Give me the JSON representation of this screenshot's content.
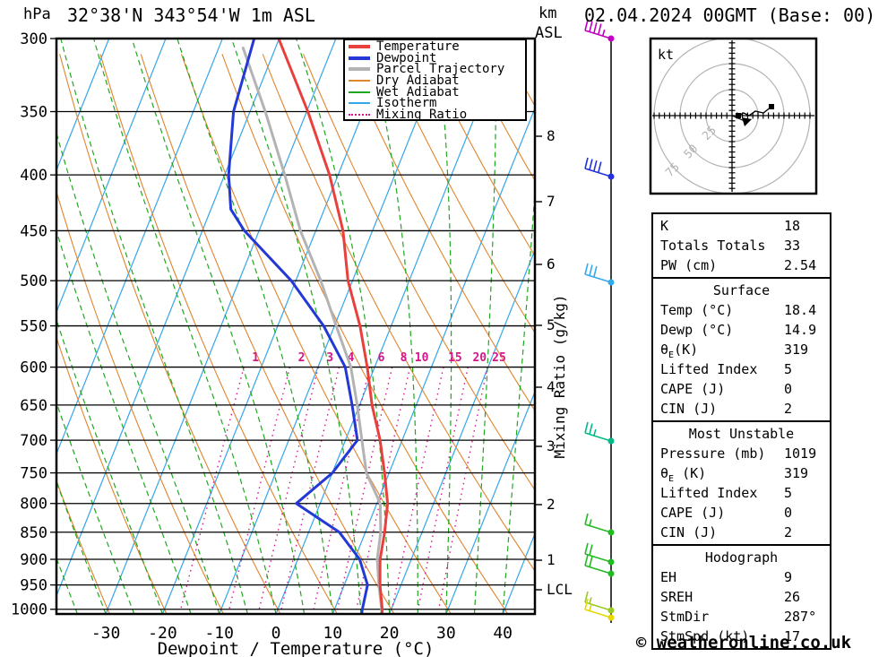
{
  "header": {
    "pressure_unit": "hPa",
    "title": "32°38'N 343°54'W 1m ASL",
    "date": "02.04.2024 00GMT (Base: 00)",
    "altitude_unit_km": "km",
    "altitude_unit_asl": "ASL"
  },
  "footer": {
    "xaxis_label": "Dewpoint / Temperature (°C)",
    "copyright": "© weatheronline.co.uk"
  },
  "legend": {
    "items": [
      {
        "label": "Temperature",
        "color": "#e8403c",
        "thick": true,
        "dotted": false
      },
      {
        "label": "Dewpoint",
        "color": "#2438d6",
        "thick": true,
        "dotted": false
      },
      {
        "label": "Parcel Trajectory",
        "color": "#b3b3b3",
        "thick": true,
        "dotted": false
      },
      {
        "label": "Dry Adiabat",
        "color": "#e0852e",
        "thick": false,
        "dotted": false
      },
      {
        "label": "Wet Adiabat",
        "color": "#1fa81f",
        "thick": false,
        "dotted": false
      },
      {
        "label": "Isotherm",
        "color": "#35a6ea",
        "thick": false,
        "dotted": false
      },
      {
        "label": "Mixing Ratio",
        "color": "#d6158c",
        "thick": false,
        "dotted": true
      }
    ]
  },
  "axes": {
    "pressure_ticks": [
      300,
      350,
      400,
      450,
      500,
      550,
      600,
      650,
      700,
      750,
      800,
      850,
      900,
      950,
      1000
    ],
    "temp_ticks": [
      -30,
      -20,
      -10,
      0,
      10,
      20,
      30,
      40
    ],
    "right_axis_label": "Mixing Ratio (g/kg)",
    "km_ticks": [
      {
        "label": "8",
        "y": 152
      },
      {
        "label": "7",
        "y": 225
      },
      {
        "label": "6",
        "y": 295
      },
      {
        "label": "5",
        "y": 363
      },
      {
        "label": "4",
        "y": 432
      },
      {
        "label": "3",
        "y": 498
      },
      {
        "label": "2",
        "y": 563
      },
      {
        "label": "1",
        "y": 625
      },
      {
        "label": "LCL",
        "y": 658
      }
    ]
  },
  "chart_data": {
    "type": "line",
    "subtype": "skewt-log-p",
    "title": "32°38'N 343°54'W 1m ASL",
    "xlabel": "Dewpoint / Temperature (°C)",
    "ylabel": "hPa",
    "xlim": [
      -40,
      45
    ],
    "pressure_range": [
      300,
      1010
    ],
    "grid": {
      "isotherm_temps": [
        -80,
        -70,
        -60,
        -50,
        -40,
        -30,
        -20,
        -10,
        0,
        10,
        20,
        30,
        40
      ],
      "dry_adiabat_thetas": [
        -40,
        -30,
        -20,
        -10,
        0,
        10,
        20,
        30,
        40,
        50,
        60,
        70,
        80,
        90,
        100,
        110,
        120
      ],
      "wet_adiabat_thetaws": [
        -40,
        -35,
        -30,
        -25,
        -20,
        -15,
        -10,
        -5,
        0,
        5,
        10,
        15,
        20,
        25,
        30,
        35,
        40
      ],
      "mixing_ratios": [
        1,
        2,
        3,
        4,
        6,
        8,
        10,
        15,
        20,
        25
      ]
    },
    "series": [
      {
        "name": "Temperature",
        "color": "#e8403c",
        "points_p_T": [
          [
            300,
            -40.1
          ],
          [
            350,
            -29.8
          ],
          [
            400,
            -21.5
          ],
          [
            450,
            -15.2
          ],
          [
            500,
            -10.8
          ],
          [
            550,
            -5.5
          ],
          [
            600,
            -1.3
          ],
          [
            650,
            2.2
          ],
          [
            700,
            6.1
          ],
          [
            750,
            9.2
          ],
          [
            800,
            11.9
          ],
          [
            850,
            13.4
          ],
          [
            900,
            14.5
          ],
          [
            950,
            16.3
          ],
          [
            1000,
            18.4
          ],
          [
            1010,
            18.7
          ]
        ]
      },
      {
        "name": "Dewpoint",
        "color": "#2438d6",
        "points_p_T": [
          [
            300,
            -44.4
          ],
          [
            350,
            -42.9
          ],
          [
            400,
            -39.3
          ],
          [
            430,
            -36.5
          ],
          [
            450,
            -32.6
          ],
          [
            500,
            -20.8
          ],
          [
            550,
            -11.9
          ],
          [
            600,
            -5.2
          ],
          [
            650,
            -1.3
          ],
          [
            700,
            2.1
          ],
          [
            750,
            0.0
          ],
          [
            800,
            -4.2
          ],
          [
            850,
            5.4
          ],
          [
            900,
            10.9
          ],
          [
            950,
            14.1
          ],
          [
            1000,
            14.9
          ],
          [
            1010,
            15.1
          ]
        ]
      },
      {
        "name": "Parcel Trajectory",
        "color": "#b3b3b3",
        "points_p_T": [
          [
            306,
            -45.7
          ],
          [
            350,
            -37.3
          ],
          [
            400,
            -29.4
          ],
          [
            450,
            -22.7
          ],
          [
            500,
            -15.6
          ],
          [
            550,
            -9.7
          ],
          [
            600,
            -4.2
          ],
          [
            650,
            -0.4
          ],
          [
            700,
            2.9
          ],
          [
            750,
            6.0
          ],
          [
            800,
            10.6
          ],
          [
            850,
            12.7
          ],
          [
            900,
            14.0
          ],
          [
            950,
            16.1
          ],
          [
            1000,
            18.3
          ],
          [
            1010,
            18.6
          ]
        ]
      }
    ],
    "wind_barbs": [
      {
        "y": 43,
        "color": "#c000c0",
        "full": 4,
        "half": 1
      },
      {
        "y": 197,
        "color": "#2233dd",
        "full": 4,
        "half": 0
      },
      {
        "y": 315,
        "color": "#33aaee",
        "full": 3,
        "half": 0
      },
      {
        "y": 492,
        "color": "#00bb88",
        "full": 2,
        "half": 1
      },
      {
        "y": 594,
        "color": "#22bb22",
        "full": 1,
        "half": 1
      },
      {
        "y": 627,
        "color": "#22bb22",
        "full": 2,
        "half": 0
      },
      {
        "y": 640,
        "color": "#22bb22",
        "full": 2,
        "half": 0
      },
      {
        "y": 681,
        "color": "#99cc22",
        "full": 1,
        "half": 1
      },
      {
        "y": 689,
        "color": "#e6d800",
        "full": 1,
        "half": 1
      }
    ]
  },
  "hodograph": {
    "unit_label": "kt",
    "ring_labels": [
      "25",
      "50",
      "75"
    ],
    "rings_kt": [
      25,
      50,
      75
    ],
    "trace_points": [
      [
        822,
        130
      ],
      [
        830,
        126
      ],
      [
        836,
        129
      ],
      [
        843,
        124
      ],
      [
        852,
        126
      ],
      [
        861,
        119
      ]
    ],
    "marker_points": [
      [
        824,
        129
      ],
      [
        861,
        119
      ]
    ],
    "arrow_point": [
      833,
      135
    ]
  },
  "tables": [
    {
      "rows": [
        {
          "label": "K",
          "value": "18"
        },
        {
          "label": "Totals Totals",
          "value": "33"
        },
        {
          "label": "PW (cm)",
          "value": "2.54"
        }
      ]
    },
    {
      "title": "Surface",
      "rows": [
        {
          "label": "Temp (°C)",
          "value": "18.4"
        },
        {
          "label": "Dewp (°C)",
          "value": "14.9"
        },
        {
          "label": "θ",
          "sub": "E",
          "rest": "(K)",
          "value": "319"
        },
        {
          "label": "Lifted Index",
          "value": "5"
        },
        {
          "label": "CAPE (J)",
          "value": "0"
        },
        {
          "label": "CIN (J)",
          "value": "2"
        }
      ]
    },
    {
      "title": "Most Unstable",
      "rows": [
        {
          "label": "Pressure (mb)",
          "value": "1019"
        },
        {
          "label": "θ",
          "sub": "E",
          "rest": " (K)",
          "value": "319"
        },
        {
          "label": "Lifted Index",
          "value": "5"
        },
        {
          "label": "CAPE (J)",
          "value": "0"
        },
        {
          "label": "CIN (J)",
          "value": "2"
        }
      ]
    },
    {
      "title": "Hodograph",
      "rows": [
        {
          "label": "EH",
          "value": "9"
        },
        {
          "label": "SREH",
          "value": "26"
        },
        {
          "label": "StmDir",
          "value": "287°"
        },
        {
          "label": "StmSpd (kt)",
          "value": "17"
        }
      ]
    }
  ]
}
